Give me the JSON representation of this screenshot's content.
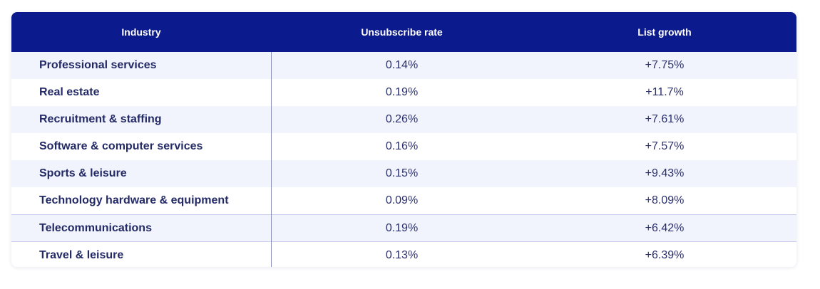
{
  "table": {
    "headers": [
      "Industry",
      "Unsubscribe rate",
      "List growth"
    ],
    "rows": [
      [
        "Professional services",
        "0.14%",
        "+7.75%"
      ],
      [
        "Real estate",
        "0.19%",
        "+11.7%"
      ],
      [
        "Recruitment & staffing",
        "0.26%",
        "+7.61%"
      ],
      [
        "Software & computer services",
        "0.16%",
        "+7.57%"
      ],
      [
        "Sports & leisure",
        "0.15%",
        "+9.43%"
      ],
      [
        "Technology hardware & equipment",
        "0.09%",
        "+8.09%"
      ],
      [
        "Telecommunications",
        "0.19%",
        "+6.42%"
      ],
      [
        "Travel & leisure",
        "0.13%",
        "+6.39%"
      ]
    ]
  },
  "colors": {
    "header_bg": "#0b1a8c",
    "header_text": "#ffffff",
    "row_alt_bg": "#f1f4fd",
    "body_text": "#2b2f6b"
  }
}
